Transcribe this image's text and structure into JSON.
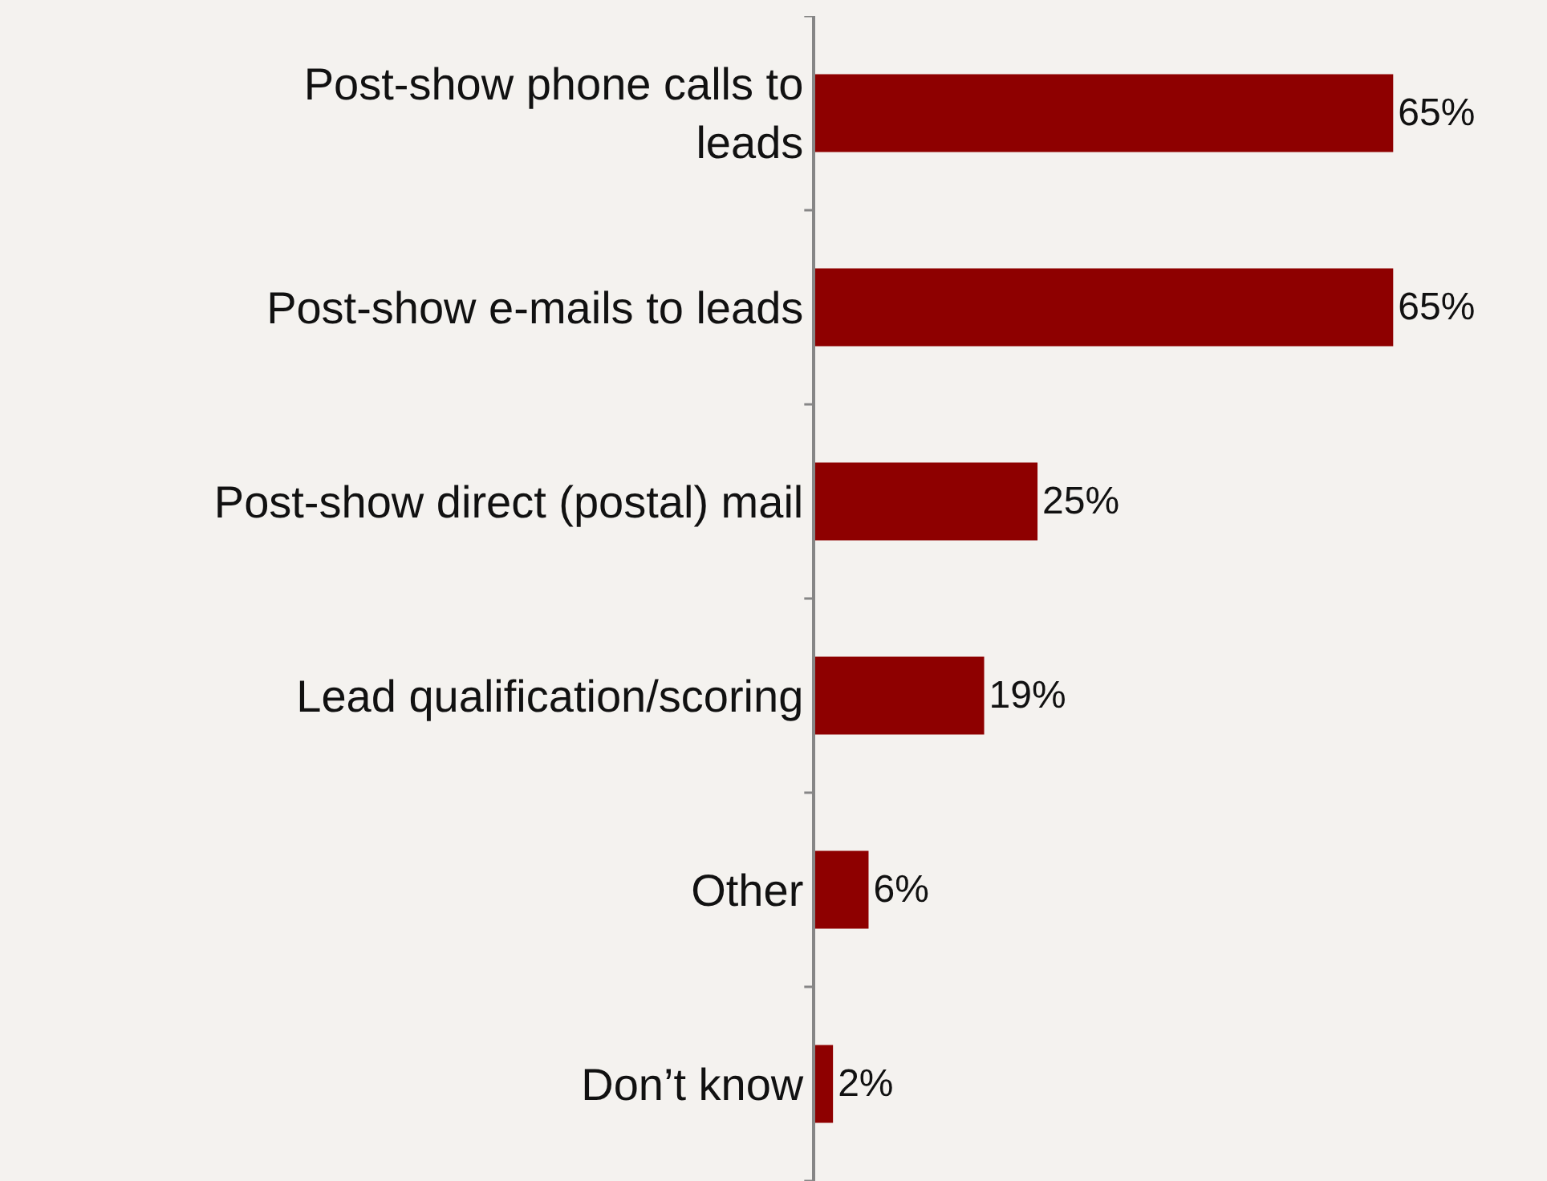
{
  "chart_data": {
    "type": "bar",
    "orientation": "horizontal",
    "categories": [
      "Post-show phone calls to\nleads",
      "Post-show e-mails to leads",
      "Post-show direct (postal) mail",
      "Lead qualification/scoring",
      "Other",
      "Don’t know"
    ],
    "values": [
      65,
      65,
      25,
      19,
      6,
      2
    ],
    "value_labels": [
      "65%",
      "65%",
      "25%",
      "19%",
      "6%",
      "2%"
    ],
    "color": "#8e0000",
    "xlim": [
      0,
      82.3
    ],
    "grid": false
  }
}
